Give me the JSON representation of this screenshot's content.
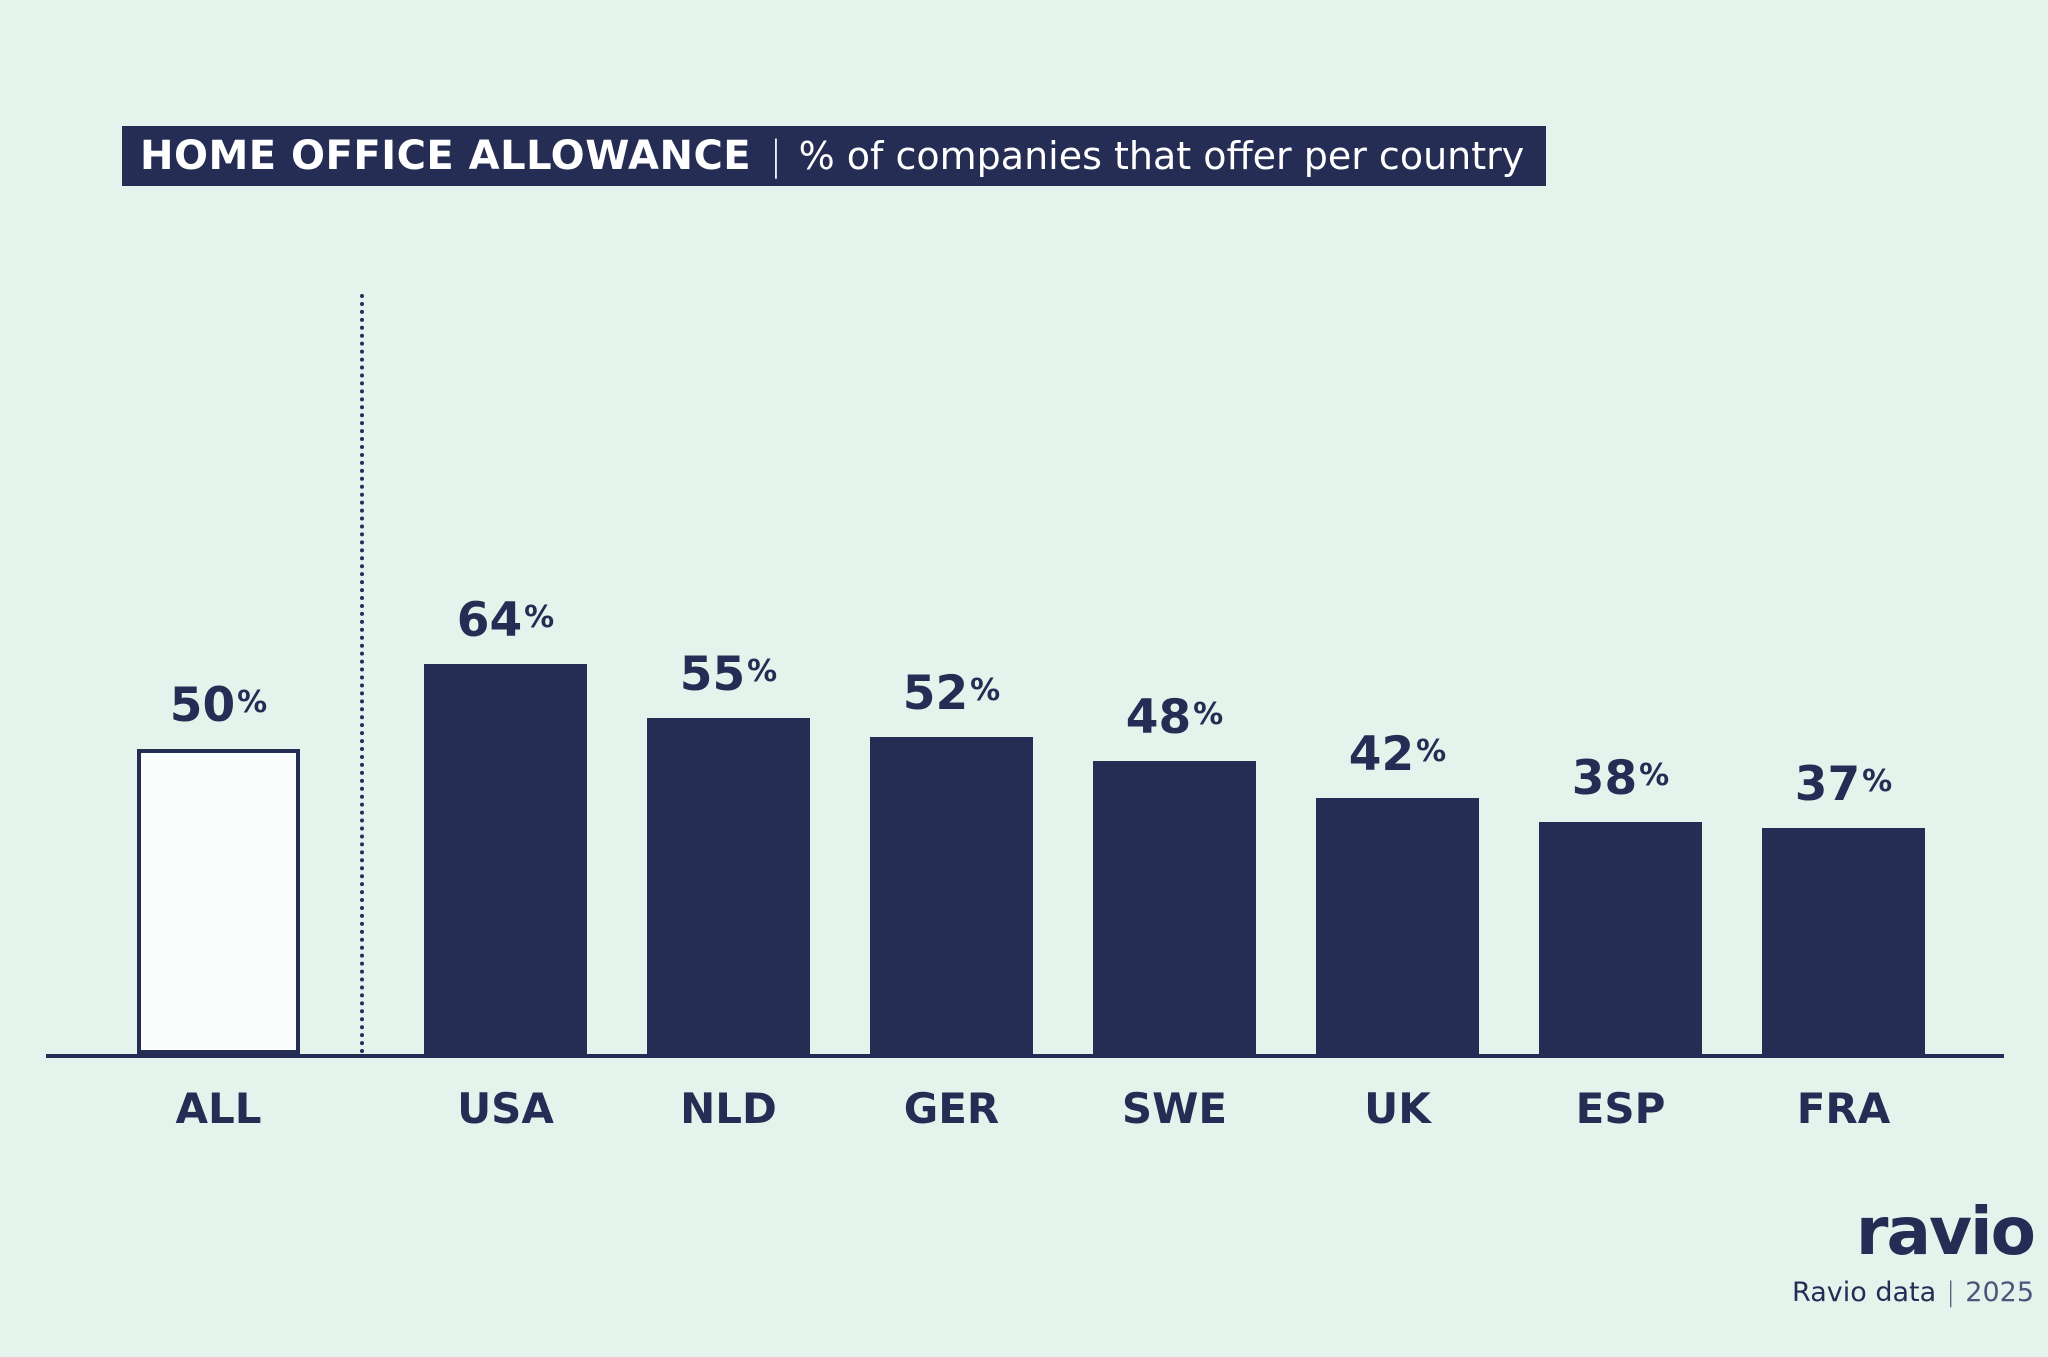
{
  "title": {
    "main": "HOME OFFICE ALLOWANCE",
    "separator": "|",
    "subtitle": "% of companies that offer per country"
  },
  "chart_data": {
    "type": "bar",
    "title": "HOME OFFICE ALLOWANCE — % of companies that offer per country",
    "categories": [
      "ALL",
      "USA",
      "NLD",
      "GER",
      "SWE",
      "UK",
      "ESP",
      "FRA"
    ],
    "values": [
      50,
      64,
      55,
      52,
      48,
      42,
      38,
      37
    ],
    "unit": "%",
    "ylim": [
      0,
      100
    ],
    "grid": false,
    "value_labels": true,
    "highlight": {
      "category": "ALL",
      "style": "outlined-bar"
    },
    "separator_after": "ALL",
    "legend": "none"
  },
  "footer": {
    "logo": "ravio",
    "source": "Ravio data",
    "separator": "|",
    "year": "2025"
  },
  "colors": {
    "background": "#e5f3ed",
    "navy": "#262d55",
    "bar_fill": "#262d55",
    "all_bar_fill": "#fafdfb",
    "title_bg": "#262d55",
    "title_text": "#ffffff"
  }
}
